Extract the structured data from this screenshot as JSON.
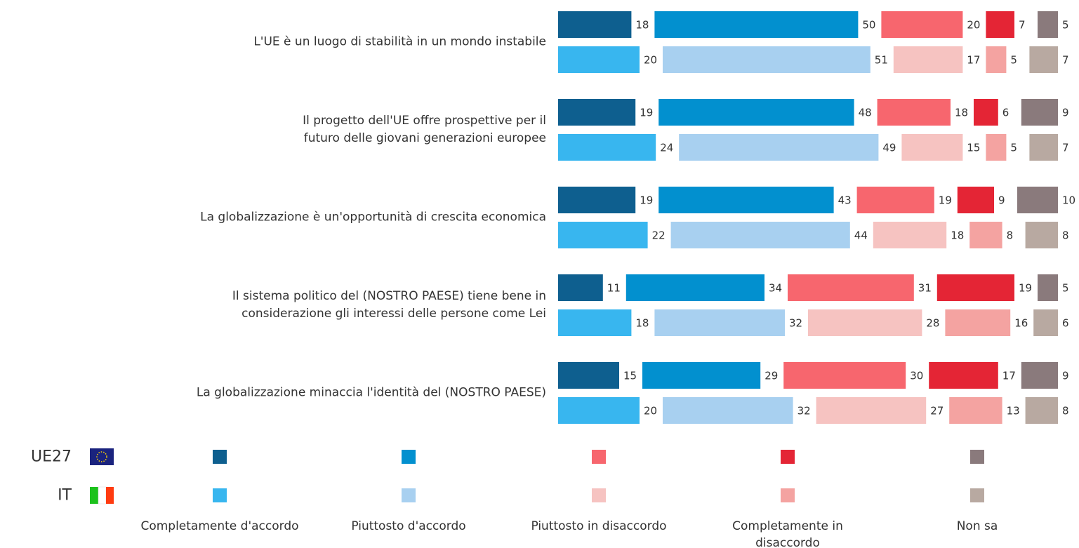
{
  "chart_data": {
    "type": "stacked-bar-groups",
    "categories": [
      "L'UE è un luogo di stabilità in un mondo instabile",
      "Il progetto dell'UE offre prospettive per il\nfuturo delle giovani generazioni europee",
      "La globalizzazione è un'opportunità di crescita economica",
      "Il sistema politico del (NOSTRO PAESE) tiene bene in\nconsiderazione gli interessi delle persone come Lei",
      "La globalizzazione minaccia l'identità del (NOSTRO PAESE)"
    ],
    "segments": [
      "Completamente d'accordo",
      "Piuttosto d'accordo",
      "Piuttosto in disaccordo",
      "Completamente in\ndisaccordo",
      "Non sa"
    ],
    "series": [
      {
        "name": "UE27",
        "colors": [
          "#0e5f8f",
          "#0290cf",
          "#f7666e",
          "#e42535",
          "#8a7a7c"
        ],
        "values": [
          [
            18,
            50,
            20,
            7,
            5
          ],
          [
            19,
            48,
            18,
            6,
            9
          ],
          [
            19,
            43,
            19,
            9,
            10
          ],
          [
            11,
            34,
            31,
            19,
            5
          ],
          [
            15,
            29,
            30,
            17,
            9
          ]
        ]
      },
      {
        "name": "IT",
        "colors": [
          "#38b6ef",
          "#a8d0f0",
          "#f6c3c1",
          "#f4a3a1",
          "#b8a9a1"
        ],
        "values": [
          [
            20,
            51,
            17,
            5,
            7
          ],
          [
            24,
            49,
            15,
            5,
            7
          ],
          [
            22,
            44,
            18,
            8,
            8
          ],
          [
            18,
            32,
            28,
            16,
            6
          ],
          [
            20,
            32,
            27,
            13,
            8
          ]
        ]
      }
    ]
  }
}
